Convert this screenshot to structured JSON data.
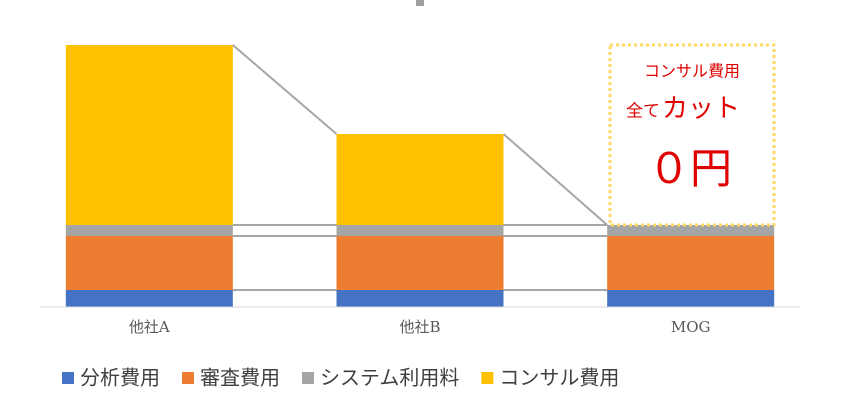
{
  "chart_data": {
    "type": "stacked_bar",
    "categories": [
      "他社A",
      "他社B",
      "MOG"
    ],
    "series": [
      {
        "name": "分析費用",
        "color": "#4472c4",
        "values": [
          17,
          17,
          17
        ]
      },
      {
        "name": "審査費用",
        "color": "#ed7d31",
        "values": [
          54,
          54,
          54
        ]
      },
      {
        "name": "システム利用料",
        "color": "#a5a5a5",
        "values": [
          11,
          11,
          11
        ]
      },
      {
        "name": "コンサル費用",
        "color": "#ffc000",
        "values": [
          180,
          91,
          0
        ]
      }
    ],
    "ylim": [
      0,
      270
    ],
    "legend": "bottom",
    "annotation": {
      "lines": [
        "コンサル費用",
        "全て",
        "カット",
        "０円"
      ]
    }
  }
}
